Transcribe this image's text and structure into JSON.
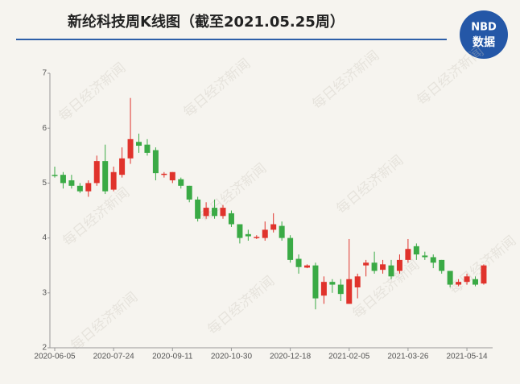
{
  "chart_data": {
    "type": "candlestick",
    "title": "新纶科技周K线图（截至2021.05.25周）",
    "logo": {
      "top": "NBD",
      "bottom": "数据"
    },
    "watermark": "每日经济新闻",
    "categories": [
      "2020-06-05",
      null,
      null,
      null,
      null,
      null,
      null,
      "2020-07-24",
      null,
      null,
      null,
      null,
      null,
      null,
      "2020-09-11",
      null,
      null,
      null,
      null,
      null,
      null,
      "2020-10-30",
      null,
      null,
      null,
      null,
      null,
      null,
      "2020-12-18",
      null,
      null,
      null,
      null,
      null,
      null,
      "2021-02-05",
      null,
      null,
      null,
      null,
      null,
      null,
      "2021-03-26",
      null,
      null,
      null,
      null,
      null,
      null,
      "2021-05-14",
      null,
      null
    ],
    "up_color": "#e0332c",
    "down_color": "#3aaa45",
    "open": [
      5.15,
      5.15,
      5.05,
      4.95,
      4.85,
      5.0,
      5.4,
      4.88,
      5.15,
      5.45,
      5.75,
      5.7,
      5.6,
      5.15,
      5.05,
      5.07,
      4.95,
      4.7,
      4.4,
      4.55,
      4.4,
      4.45,
      4.25,
      4.07,
      4.0,
      4.0,
      4.15,
      4.22,
      4.0,
      3.62,
      3.46,
      3.5,
      2.95,
      3.2,
      3.15,
      2.8,
      3.1,
      3.5,
      3.55,
      3.42,
      3.5,
      3.4,
      3.6,
      3.85,
      3.68,
      3.65,
      3.6,
      3.4,
      3.15,
      3.2,
      3.25,
      3.17
    ],
    "high": [
      5.3,
      5.2,
      5.15,
      5.0,
      5.05,
      5.5,
      5.7,
      5.3,
      5.65,
      6.55,
      5.9,
      5.8,
      5.65,
      5.2,
      5.2,
      5.1,
      4.95,
      4.75,
      4.65,
      4.7,
      4.6,
      4.5,
      4.25,
      4.15,
      4.05,
      4.3,
      4.45,
      4.3,
      4.05,
      3.7,
      3.52,
      3.55,
      3.3,
      3.25,
      3.25,
      3.98,
      3.35,
      3.6,
      3.75,
      3.6,
      3.6,
      3.7,
      3.98,
      3.9,
      3.75,
      3.7,
      3.6,
      3.4,
      3.25,
      3.35,
      3.3,
      3.52
    ],
    "low": [
      5.1,
      4.9,
      4.9,
      4.82,
      4.75,
      4.95,
      4.8,
      4.85,
      5.1,
      5.35,
      5.55,
      5.5,
      5.05,
      5.1,
      5.0,
      4.9,
      4.65,
      4.3,
      4.35,
      4.35,
      4.35,
      4.2,
      3.9,
      3.95,
      3.98,
      3.95,
      4.1,
      3.95,
      3.55,
      3.35,
      3.45,
      2.7,
      2.8,
      3.0,
      2.85,
      2.8,
      2.9,
      3.3,
      3.35,
      3.35,
      3.25,
      3.35,
      3.55,
      3.6,
      3.6,
      3.45,
      3.35,
      3.1,
      3.12,
      3.15,
      3.12,
      3.15
    ],
    "close": [
      5.13,
      5.0,
      4.95,
      4.85,
      5.0,
      5.4,
      4.85,
      5.2,
      5.45,
      5.8,
      5.68,
      5.55,
      5.18,
      5.17,
      5.2,
      4.95,
      4.7,
      4.35,
      4.55,
      4.4,
      4.55,
      4.25,
      4.0,
      4.03,
      4.02,
      4.15,
      4.25,
      4.0,
      3.6,
      3.47,
      3.5,
      2.9,
      3.2,
      3.15,
      2.98,
      3.25,
      3.3,
      3.55,
      3.4,
      3.52,
      3.3,
      3.6,
      3.8,
      3.7,
      3.65,
      3.55,
      3.4,
      3.15,
      3.2,
      3.3,
      3.15,
      3.5
    ],
    "ylim": [
      2,
      7
    ],
    "yticks": [
      2,
      3,
      4,
      5,
      6,
      7
    ]
  }
}
